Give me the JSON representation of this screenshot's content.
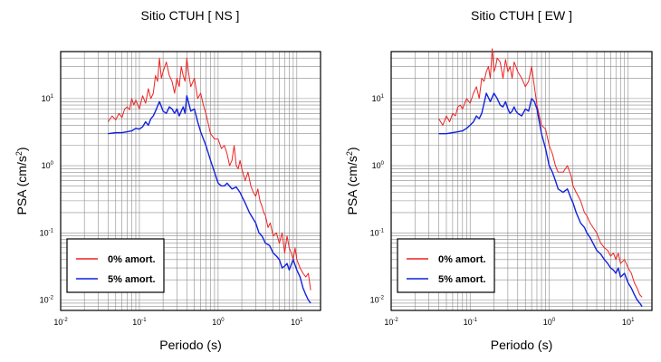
{
  "chart_data": [
    {
      "type": "line",
      "title": "Sitio CTUH [ NS ]",
      "xlabel": "Periodo (s)",
      "ylabel_base": "PSA (cm/s",
      "ylabel_exp": "2",
      "ylabel_end": ")",
      "xscale": "log",
      "yscale": "log",
      "xlim": [
        0.01,
        20
      ],
      "ylim": [
        0.007,
        50
      ],
      "grid": true,
      "legend_position": "bottom-left",
      "x_ticks": [
        {
          "base": "10",
          "exp": "-2"
        },
        {
          "base": "10",
          "exp": "-1"
        },
        {
          "base": "10",
          "exp": "0"
        },
        {
          "base": "10",
          "exp": "1"
        }
      ],
      "y_ticks": [
        {
          "base": "10",
          "exp": "-2"
        },
        {
          "base": "10",
          "exp": "-1"
        },
        {
          "base": "10",
          "exp": "0"
        },
        {
          "base": "10",
          "exp": "1"
        }
      ],
      "series": [
        {
          "name": "0% amort.",
          "color": "#ee2222",
          "x": [
            0.04,
            0.045,
            0.05,
            0.055,
            0.06,
            0.065,
            0.07,
            0.075,
            0.08,
            0.085,
            0.09,
            0.1,
            0.11,
            0.12,
            0.13,
            0.14,
            0.15,
            0.16,
            0.17,
            0.18,
            0.19,
            0.2,
            0.22,
            0.24,
            0.26,
            0.28,
            0.3,
            0.32,
            0.34,
            0.36,
            0.38,
            0.4,
            0.42,
            0.45,
            0.5,
            0.55,
            0.6,
            0.65,
            0.7,
            0.8,
            0.9,
            1.0,
            1.1,
            1.2,
            1.3,
            1.4,
            1.5,
            1.6,
            1.7,
            1.8,
            1.9,
            2.0,
            2.2,
            2.4,
            2.6,
            2.8,
            3.0,
            3.2,
            3.4,
            3.6,
            3.8,
            4.0,
            4.3,
            4.6,
            5.0,
            5.5,
            6.0,
            6.5,
            7.0,
            7.5,
            8.0,
            8.5,
            9.0,
            9.5,
            10,
            11,
            12,
            13,
            14,
            15
          ],
          "y": [
            4.5,
            5.5,
            4.8,
            6.0,
            5.2,
            7.0,
            7.5,
            6.8,
            10,
            8.0,
            9.5,
            7.0,
            11,
            8.5,
            14,
            10,
            12,
            22,
            18,
            40,
            20,
            25,
            35,
            22,
            18,
            12,
            20,
            15,
            30,
            22,
            18,
            40,
            25,
            15,
            20,
            10,
            12,
            8,
            6,
            3,
            2.5,
            2.5,
            1.8,
            2.0,
            1.5,
            1.0,
            1.2,
            2.0,
            1.0,
            0.9,
            1.2,
            0.9,
            0.6,
            0.8,
            0.5,
            0.4,
            0.35,
            0.45,
            0.3,
            0.25,
            0.2,
            0.18,
            0.12,
            0.14,
            0.09,
            0.1,
            0.07,
            0.1,
            0.05,
            0.09,
            0.06,
            0.05,
            0.04,
            0.06,
            0.04,
            0.03,
            0.025,
            0.022,
            0.025,
            0.014
          ]
        },
        {
          "name": "5% amort.",
          "color": "#1122dd",
          "x": [
            0.04,
            0.05,
            0.06,
            0.07,
            0.08,
            0.09,
            0.1,
            0.11,
            0.12,
            0.13,
            0.14,
            0.15,
            0.16,
            0.18,
            0.2,
            0.22,
            0.24,
            0.26,
            0.28,
            0.3,
            0.32,
            0.34,
            0.36,
            0.38,
            0.4,
            0.45,
            0.5,
            0.55,
            0.6,
            0.7,
            0.8,
            0.9,
            1.0,
            1.1,
            1.2,
            1.3,
            1.5,
            1.7,
            1.9,
            2.0,
            2.2,
            2.5,
            2.8,
            3.0,
            3.3,
            3.6,
            4.0,
            4.5,
            5.0,
            5.5,
            6.0,
            6.5,
            7.0,
            7.5,
            8.0,
            9.0,
            10,
            11,
            12,
            13,
            14,
            15
          ],
          "y": [
            3.0,
            3.1,
            3.1,
            3.2,
            3.3,
            3.6,
            3.5,
            3.8,
            4.5,
            4.0,
            5.0,
            5.5,
            6.5,
            9.0,
            6.5,
            6.0,
            7.5,
            7.0,
            6.0,
            7.0,
            5.5,
            6.5,
            7.5,
            6.0,
            11,
            6.5,
            7.0,
            4.5,
            3.2,
            2.0,
            1.2,
            0.8,
            0.55,
            0.5,
            0.5,
            0.55,
            0.45,
            0.48,
            0.4,
            0.35,
            0.28,
            0.2,
            0.16,
            0.14,
            0.1,
            0.09,
            0.07,
            0.065,
            0.05,
            0.045,
            0.04,
            0.03,
            0.032,
            0.035,
            0.028,
            0.04,
            0.028,
            0.022,
            0.015,
            0.012,
            0.01,
            0.009
          ]
        }
      ]
    },
    {
      "type": "line",
      "title": "Sitio CTUH [ EW ]",
      "xlabel": "Periodo (s)",
      "ylabel_base": "PSA (cm/s",
      "ylabel_exp": "2",
      "ylabel_end": ")",
      "xscale": "log",
      "yscale": "log",
      "xlim": [
        0.01,
        20
      ],
      "ylim": [
        0.007,
        50
      ],
      "grid": true,
      "legend_position": "bottom-left",
      "x_ticks": [
        {
          "base": "10",
          "exp": "-2"
        },
        {
          "base": "10",
          "exp": "-1"
        },
        {
          "base": "10",
          "exp": "0"
        },
        {
          "base": "10",
          "exp": "1"
        }
      ],
      "y_ticks": [
        {
          "base": "10",
          "exp": "-2"
        },
        {
          "base": "10",
          "exp": "-1"
        },
        {
          "base": "10",
          "exp": "0"
        },
        {
          "base": "10",
          "exp": "1"
        }
      ],
      "series": [
        {
          "name": "0% amort.",
          "color": "#ee2222",
          "x": [
            0.04,
            0.045,
            0.05,
            0.055,
            0.06,
            0.065,
            0.07,
            0.075,
            0.08,
            0.09,
            0.1,
            0.11,
            0.12,
            0.13,
            0.14,
            0.15,
            0.16,
            0.17,
            0.18,
            0.19,
            0.2,
            0.21,
            0.22,
            0.24,
            0.26,
            0.28,
            0.3,
            0.32,
            0.34,
            0.36,
            0.38,
            0.4,
            0.45,
            0.5,
            0.55,
            0.6,
            0.65,
            0.7,
            0.8,
            0.9,
            1.0,
            1.1,
            1.2,
            1.3,
            1.5,
            1.7,
            1.9,
            2.0,
            2.2,
            2.5,
            2.8,
            3.0,
            3.3,
            3.6,
            4.0,
            4.5,
            5.0,
            5.5,
            6.0,
            6.5,
            7.0,
            7.5,
            8.0,
            9.0,
            10,
            11,
            12,
            13,
            14,
            15
          ],
          "y": [
            5.0,
            4.0,
            5.5,
            4.5,
            6.0,
            5.5,
            7.5,
            8.0,
            7.0,
            10,
            8.5,
            12,
            15,
            10,
            20,
            18,
            25,
            30,
            20,
            55,
            25,
            30,
            40,
            35,
            20,
            38,
            25,
            30,
            20,
            35,
            30,
            25,
            20,
            15,
            18,
            30,
            15,
            8,
            4,
            3.5,
            2.0,
            1.5,
            1.0,
            0.8,
            0.8,
            1.0,
            0.7,
            0.5,
            0.4,
            0.3,
            0.2,
            0.18,
            0.14,
            0.12,
            0.1,
            0.07,
            0.06,
            0.055,
            0.045,
            0.05,
            0.04,
            0.05,
            0.035,
            0.04,
            0.03,
            0.025,
            0.018,
            0.015,
            0.012,
            0.011
          ]
        },
        {
          "name": "5% amort.",
          "color": "#1122dd",
          "x": [
            0.04,
            0.05,
            0.06,
            0.07,
            0.08,
            0.09,
            0.1,
            0.11,
            0.12,
            0.13,
            0.14,
            0.15,
            0.16,
            0.18,
            0.2,
            0.22,
            0.24,
            0.26,
            0.28,
            0.3,
            0.32,
            0.34,
            0.36,
            0.38,
            0.4,
            0.45,
            0.5,
            0.55,
            0.6,
            0.65,
            0.7,
            0.8,
            0.9,
            1.0,
            1.1,
            1.2,
            1.3,
            1.5,
            1.7,
            1.9,
            2.0,
            2.2,
            2.5,
            2.8,
            3.0,
            3.3,
            3.6,
            4.0,
            4.5,
            5.0,
            5.5,
            6.0,
            6.5,
            7.0,
            7.5,
            8.0,
            9.0,
            10,
            11,
            12,
            13,
            14,
            15
          ],
          "y": [
            3.0,
            3.0,
            3.1,
            3.2,
            3.3,
            3.6,
            4.0,
            4.5,
            5.5,
            5.0,
            6.0,
            8.5,
            12,
            9.0,
            12,
            10,
            8,
            7.5,
            9,
            7.0,
            6.0,
            6.5,
            7.5,
            6.5,
            6.0,
            5.5,
            7.0,
            6.5,
            10,
            9,
            7.0,
            3.0,
            1.8,
            1.0,
            0.8,
            0.6,
            0.45,
            0.4,
            0.45,
            0.32,
            0.28,
            0.2,
            0.14,
            0.12,
            0.1,
            0.085,
            0.07,
            0.055,
            0.048,
            0.04,
            0.035,
            0.03,
            0.028,
            0.025,
            0.03,
            0.022,
            0.025,
            0.018,
            0.015,
            0.012,
            0.01,
            0.009,
            0.008
          ]
        }
      ]
    }
  ]
}
